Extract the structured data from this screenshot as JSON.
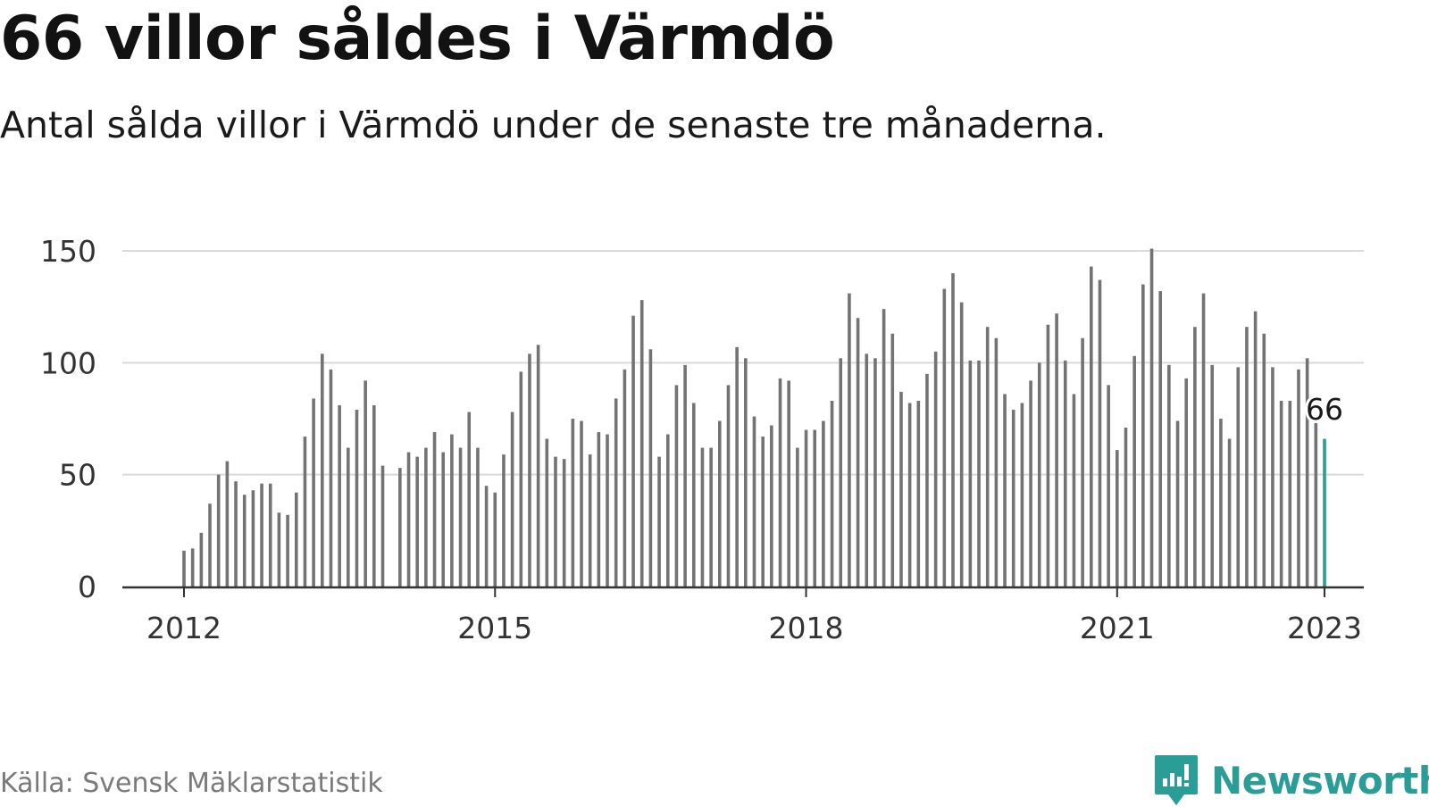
{
  "title": "66 villor såldes i Värmdö",
  "subtitle": "Antal sålda villor i Värmdö under de senaste tre månaderna.",
  "source": "Källa: Svensk Mäklarstatistik",
  "brand": {
    "name": "Newsworthy",
    "icon": "newsworthy-logo-icon",
    "color": "#2a9d96"
  },
  "colors": {
    "bar": "#737373",
    "highlight": "#2a9d96",
    "grid": "#d9d9d9",
    "axis": "#333333"
  },
  "chart_data": {
    "type": "bar",
    "title": "66 villor såldes i Värmdö",
    "subtitle": "Antal sålda villor i Värmdö under de senaste tre månaderna.",
    "xlabel": "",
    "ylabel": "",
    "ylim": [
      0,
      150
    ],
    "yticks": [
      0,
      50,
      100,
      150
    ],
    "xticks": [
      "2012",
      "2015",
      "2018",
      "2021",
      "2023"
    ],
    "x_start": "2012-01",
    "x_end": "2023-01",
    "grid": true,
    "legend": "none",
    "highlight": {
      "label": "66",
      "value": 66
    },
    "values": [
      16,
      17,
      24,
      37,
      50,
      56,
      47,
      41,
      43,
      46,
      46,
      33,
      32,
      42,
      67,
      84,
      104,
      97,
      81,
      62,
      79,
      92,
      81,
      54,
      null,
      53,
      60,
      58,
      62,
      69,
      60,
      68,
      62,
      78,
      62,
      45,
      42,
      59,
      78,
      96,
      104,
      108,
      66,
      58,
      57,
      75,
      74,
      59,
      69,
      68,
      84,
      97,
      121,
      128,
      106,
      58,
      68,
      90,
      99,
      82,
      62,
      62,
      74,
      90,
      107,
      102,
      76,
      67,
      72,
      93,
      92,
      62,
      70,
      70,
      74,
      83,
      102,
      131,
      120,
      104,
      102,
      124,
      113,
      87,
      82,
      83,
      95,
      105,
      133,
      140,
      127,
      101,
      101,
      116,
      111,
      86,
      79,
      82,
      92,
      100,
      117,
      122,
      101,
      86,
      111,
      143,
      137,
      90,
      61,
      71,
      103,
      135,
      151,
      132,
      99,
      74,
      93,
      116,
      131,
      99,
      75,
      66,
      98,
      116,
      123,
      113,
      98,
      83,
      83,
      97,
      102,
      73,
      66
    ]
  }
}
